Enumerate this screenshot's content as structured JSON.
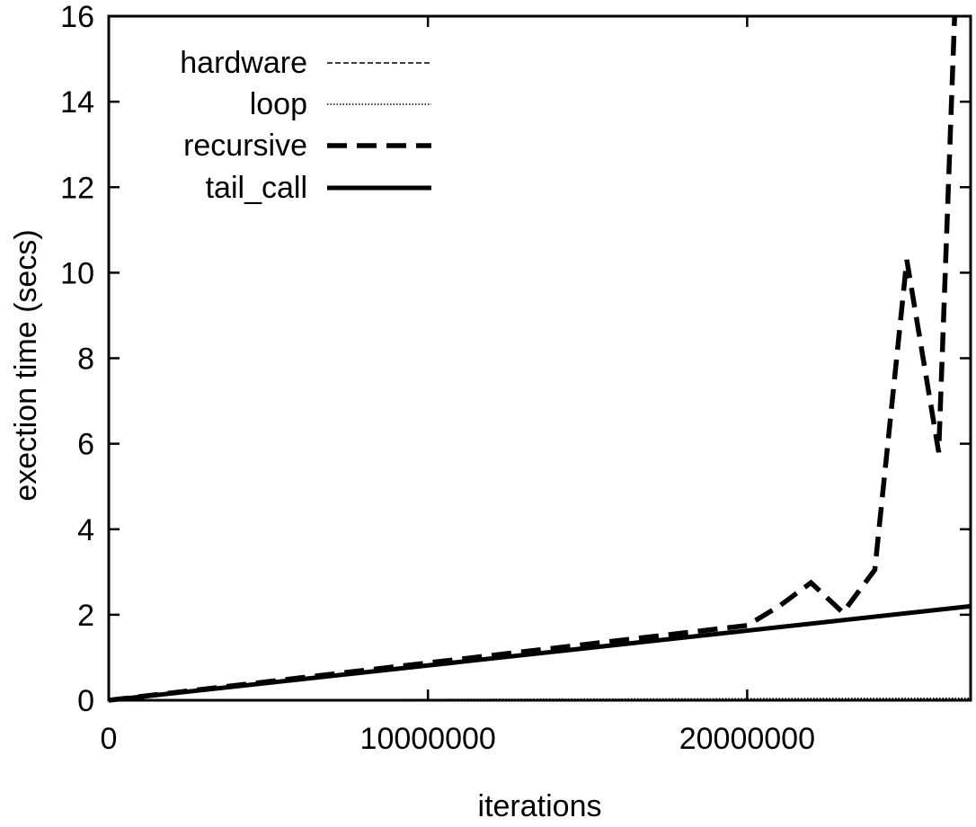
{
  "chart_data": {
    "type": "line",
    "title": "",
    "xlabel": "iterations",
    "ylabel": "exection time (secs)",
    "xlim": [
      0,
      27000000
    ],
    "ylim": [
      0,
      16
    ],
    "x_ticks": [
      0,
      10000000,
      20000000
    ],
    "x_tick_labels": [
      "0",
      "10000000",
      "20000000"
    ],
    "y_ticks": [
      0,
      2,
      4,
      6,
      8,
      10,
      12,
      14,
      16
    ],
    "y_tick_labels": [
      "0",
      "2",
      "4",
      "6",
      "8",
      "10",
      "12",
      "14",
      "16"
    ],
    "grid": false,
    "legend_position": "top-left",
    "series": [
      {
        "name": "hardware",
        "style": "thin-dashed",
        "x": [
          0,
          27000000
        ],
        "y": [
          0,
          0.02
        ]
      },
      {
        "name": "loop",
        "style": "thin-dotted",
        "x": [
          0,
          27000000
        ],
        "y": [
          0,
          0.05
        ]
      },
      {
        "name": "recursive",
        "style": "thick-dashed",
        "x": [
          0,
          20000000,
          21000000,
          22000000,
          23000000,
          24000000,
          25000000,
          26000000,
          26500000
        ],
        "y": [
          0,
          1.75,
          2.2,
          2.75,
          2.05,
          3.05,
          10.3,
          5.8,
          16.0
        ]
      },
      {
        "name": "tail_call",
        "style": "thick-solid",
        "x": [
          0,
          27000000
        ],
        "y": [
          0,
          2.2
        ]
      }
    ]
  }
}
